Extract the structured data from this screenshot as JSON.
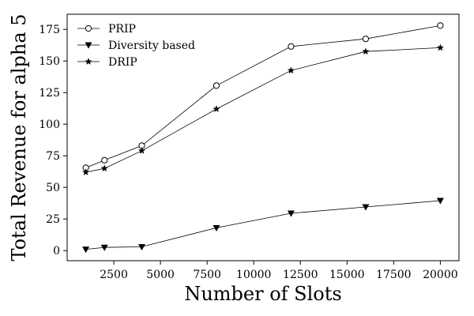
{
  "chart_data": {
    "type": "line",
    "xlabel": "Number of Slots",
    "ylabel": "Total Revenue for alpha 5",
    "xlim": [
      0,
      21000
    ],
    "ylim": [
      -8,
      187
    ],
    "xticks": [
      2500,
      5000,
      7500,
      10000,
      12500,
      15000,
      17500,
      20000
    ],
    "xtick_labels": [
      "2500",
      "5000",
      "7500",
      "10000",
      "12500",
      "15000",
      "17500",
      "20000"
    ],
    "yticks": [
      0,
      25,
      50,
      75,
      100,
      125,
      150,
      175
    ],
    "ytick_labels": [
      "0",
      "25",
      "50",
      "75",
      "100",
      "125",
      "150",
      "175"
    ],
    "grid": false,
    "legend_position": "top-left",
    "x": [
      1000,
      2000,
      4000,
      8000,
      12000,
      16000,
      20000
    ],
    "series": [
      {
        "name": "PRIP",
        "marker": "circle",
        "values": [
          65.5,
          71.5,
          83,
          130.5,
          161.5,
          167.5,
          178
        ]
      },
      {
        "name": "Diversity based",
        "marker": "triangle-down",
        "values": [
          1,
          2.5,
          3,
          18,
          29.5,
          34.5,
          39.5
        ]
      },
      {
        "name": "DRIP",
        "marker": "star",
        "values": [
          62,
          65,
          79,
          112,
          142.5,
          157.5,
          160.5
        ]
      }
    ],
    "line_color": "#000000"
  }
}
